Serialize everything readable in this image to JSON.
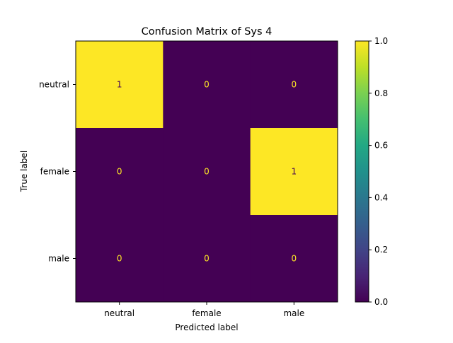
{
  "chart_data": {
    "type": "heatmap",
    "title": "Confusion Matrix of Sys 4",
    "xlabel": "Predicted label",
    "ylabel": "True label",
    "x_categories": [
      "neutral",
      "female",
      "male"
    ],
    "y_categories": [
      "neutral",
      "female",
      "male"
    ],
    "values": [
      [
        1,
        0,
        0
      ],
      [
        0,
        0,
        1
      ],
      [
        0,
        0,
        0
      ]
    ],
    "colorbar": {
      "range": [
        0.0,
        1.0
      ],
      "ticks": [
        "0.0",
        "0.2",
        "0.4",
        "0.6",
        "0.8",
        "1.0"
      ],
      "colormap": "viridis"
    },
    "colors": {
      "low": "#440154",
      "high": "#fde725",
      "text_on_low": "#fde725",
      "text_on_high": "#440154"
    }
  }
}
